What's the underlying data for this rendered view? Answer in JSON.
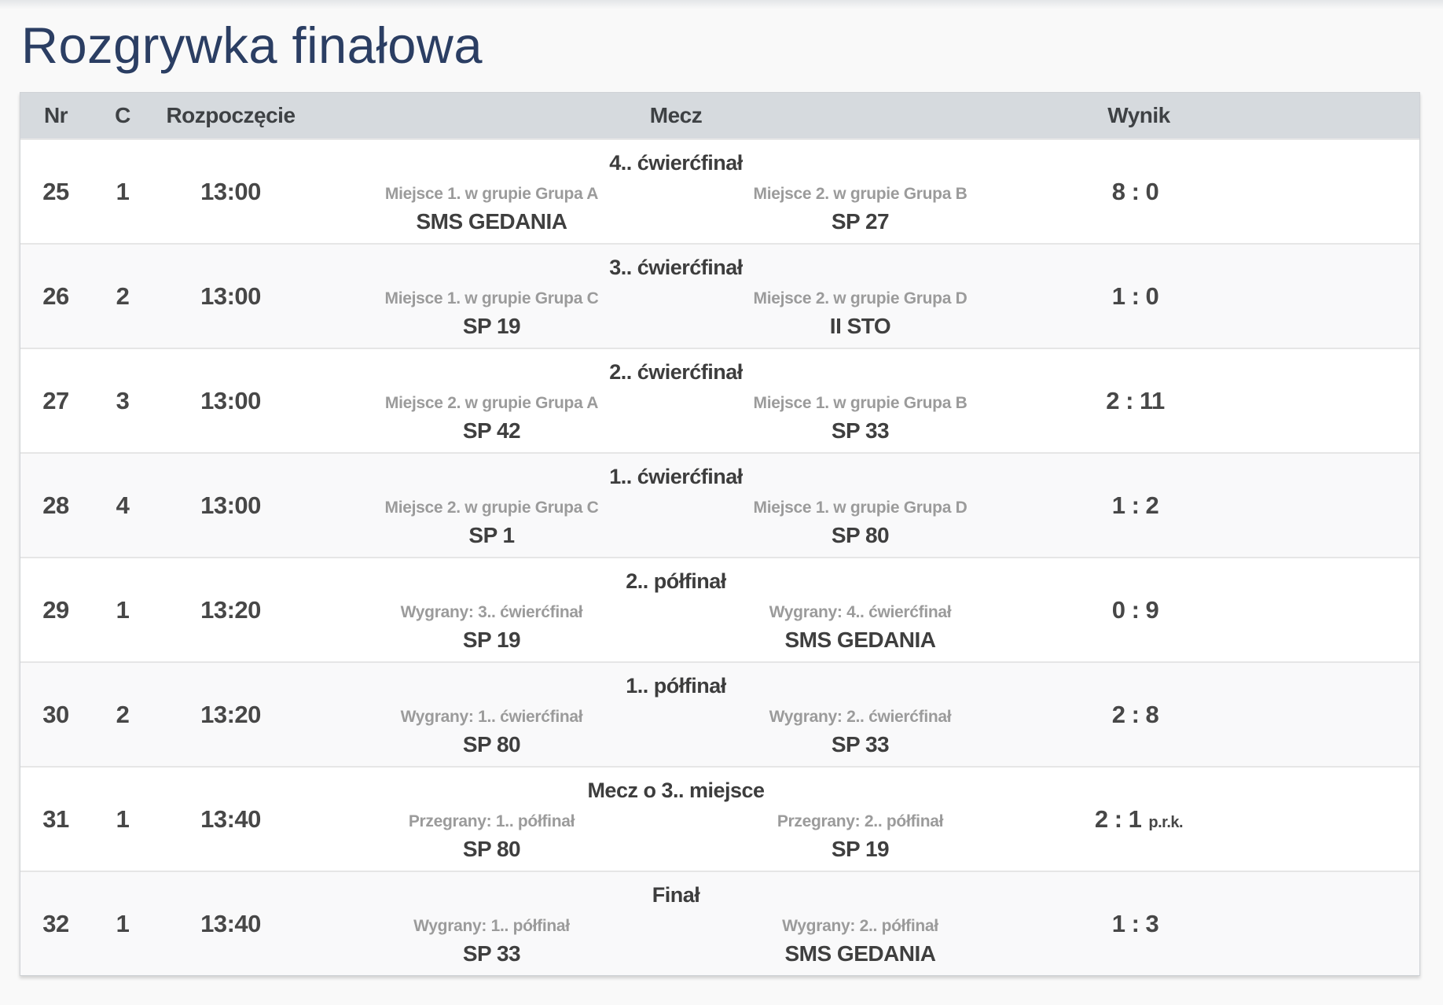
{
  "page": {
    "title": "Rozgrywka finałowa"
  },
  "colors": {
    "title_text": "#2b3e63",
    "header_background": "#d6dade",
    "header_text": "#3e4144",
    "body_text": "#474747",
    "muted_label_text": "#9b9b9b",
    "row_zebra": "#f9f9fa",
    "row_separator": "#e6e6e6"
  },
  "table": {
    "headers": {
      "nr": "Nr",
      "court": "C",
      "start": "Rozpoczęcie",
      "match": "Mecz",
      "result": "Wynik"
    },
    "rows": [
      {
        "nr": "25",
        "court": "1",
        "start": "13:00",
        "phase": "4.. ćwierćfinał",
        "home_label": "Miejsce 1. w grupie Grupa A",
        "home": "SMS GEDANIA",
        "away_label": "Miejsce 2. w grupie Grupa B",
        "away": "SP 27",
        "result": "8 : 0",
        "result_note": ""
      },
      {
        "nr": "26",
        "court": "2",
        "start": "13:00",
        "phase": "3.. ćwierćfinał",
        "home_label": "Miejsce 1. w grupie Grupa C",
        "home": "SP 19",
        "away_label": "Miejsce 2. w grupie Grupa D",
        "away": "II STO",
        "result": "1 : 0",
        "result_note": ""
      },
      {
        "nr": "27",
        "court": "3",
        "start": "13:00",
        "phase": "2.. ćwierćfinał",
        "home_label": "Miejsce 2. w grupie Grupa A",
        "home": "SP 42",
        "away_label": "Miejsce 1. w grupie Grupa B",
        "away": "SP 33",
        "result": "2 : 11",
        "result_note": ""
      },
      {
        "nr": "28",
        "court": "4",
        "start": "13:00",
        "phase": "1.. ćwierćfinał",
        "home_label": "Miejsce 2. w grupie Grupa C",
        "home": "SP 1",
        "away_label": "Miejsce 1. w grupie Grupa D",
        "away": "SP 80",
        "result": "1 : 2",
        "result_note": ""
      },
      {
        "nr": "29",
        "court": "1",
        "start": "13:20",
        "phase": "2.. półfinał",
        "home_label": "Wygrany: 3.. ćwierćfinał",
        "home": "SP 19",
        "away_label": "Wygrany: 4.. ćwierćfinał",
        "away": "SMS GEDANIA",
        "result": "0 : 9",
        "result_note": ""
      },
      {
        "nr": "30",
        "court": "2",
        "start": "13:20",
        "phase": "1.. półfinał",
        "home_label": "Wygrany: 1.. ćwierćfinał",
        "home": "SP 80",
        "away_label": "Wygrany: 2.. ćwierćfinał",
        "away": "SP 33",
        "result": "2 : 8",
        "result_note": ""
      },
      {
        "nr": "31",
        "court": "1",
        "start": "13:40",
        "phase": "Mecz o 3.. miejsce",
        "home_label": "Przegrany: 1.. półfinał",
        "home": "SP 80",
        "away_label": "Przegrany: 2.. półfinał",
        "away": "SP 19",
        "result": "2 : 1",
        "result_note": "p.r.k."
      },
      {
        "nr": "32",
        "court": "1",
        "start": "13:40",
        "phase": "Finał",
        "home_label": "Wygrany: 1.. półfinał",
        "home": "SP 33",
        "away_label": "Wygrany: 2.. półfinał",
        "away": "SMS GEDANIA",
        "result": "1 : 3",
        "result_note": ""
      }
    ]
  }
}
